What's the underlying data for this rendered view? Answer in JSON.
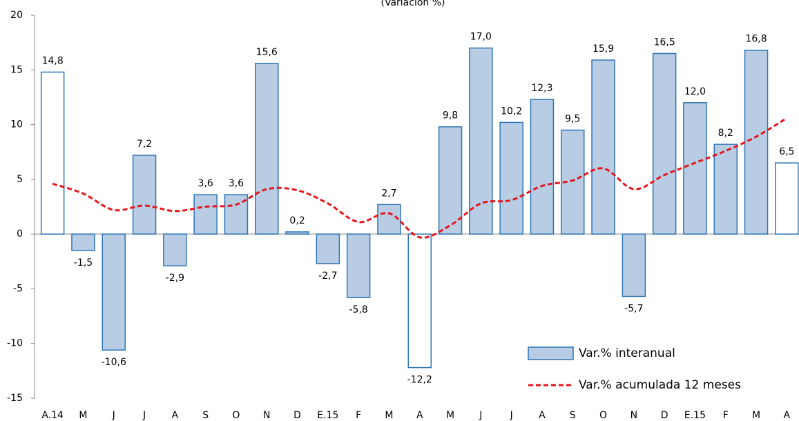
{
  "chart_data": {
    "type": "bar",
    "title": "(Variación %)",
    "categories": [
      "A.14",
      "M",
      "J",
      "J",
      "A",
      "S",
      "O",
      "N",
      "D",
      "E.15",
      "F",
      "M",
      "A",
      "M",
      "J",
      "J",
      "A",
      "S",
      "O",
      "N",
      "D",
      "E.15",
      "F",
      "M",
      "A"
    ],
    "series": [
      {
        "name": "Var.% interanual",
        "type": "bar",
        "color": "#b8cce4",
        "stroke": "#2e75b6",
        "point_colors": [
          "#ffffff",
          "#b8cce4",
          "#b8cce4",
          "#b8cce4",
          "#b8cce4",
          "#b8cce4",
          "#b8cce4",
          "#b8cce4",
          "#b8cce4",
          "#b8cce4",
          "#b8cce4",
          "#b8cce4",
          "#ffffff",
          "#b8cce4",
          "#b8cce4",
          "#b8cce4",
          "#b8cce4",
          "#b8cce4",
          "#b8cce4",
          "#b8cce4",
          "#b8cce4",
          "#b8cce4",
          "#b8cce4",
          "#b8cce4",
          "#ffffff"
        ],
        "values": [
          14.8,
          -1.5,
          -10.6,
          7.2,
          -2.9,
          3.6,
          3.6,
          15.6,
          0.2,
          -2.7,
          -5.8,
          2.7,
          -12.2,
          9.8,
          17.0,
          10.2,
          12.3,
          9.5,
          15.9,
          -5.7,
          16.5,
          12.0,
          8.2,
          16.8,
          6.5
        ],
        "value_labels": [
          "14,8",
          "-1,5",
          "-10,6",
          "7,2",
          "-2,9",
          "3,6",
          "3,6",
          "15,6",
          "0,2",
          "-2,7",
          "-5,8",
          "2,7",
          "-12,2",
          "9,8",
          "17,0",
          "10,2",
          "12,3",
          "9,5",
          "15,9",
          "-5,7",
          "16,5",
          "12,0",
          "8,2",
          "16,8",
          "6,5"
        ]
      },
      {
        "name": "Var.% acumulada 12 meses",
        "type": "line",
        "color": "#e8141b",
        "dashed": true,
        "values": [
          4.6,
          3.7,
          2.2,
          2.6,
          2.1,
          2.5,
          2.7,
          4.1,
          4.0,
          2.8,
          1.1,
          1.9,
          -0.3,
          0.8,
          2.8,
          3.1,
          4.4,
          4.9,
          6.0,
          4.1,
          5.4,
          6.5,
          7.6,
          8.9,
          10.6
        ]
      }
    ],
    "ylim": [
      -15,
      20
    ],
    "yticks": [
      -15,
      -10,
      -5,
      0,
      5,
      10,
      15,
      20
    ],
    "grid": false,
    "legend": "lower right"
  }
}
